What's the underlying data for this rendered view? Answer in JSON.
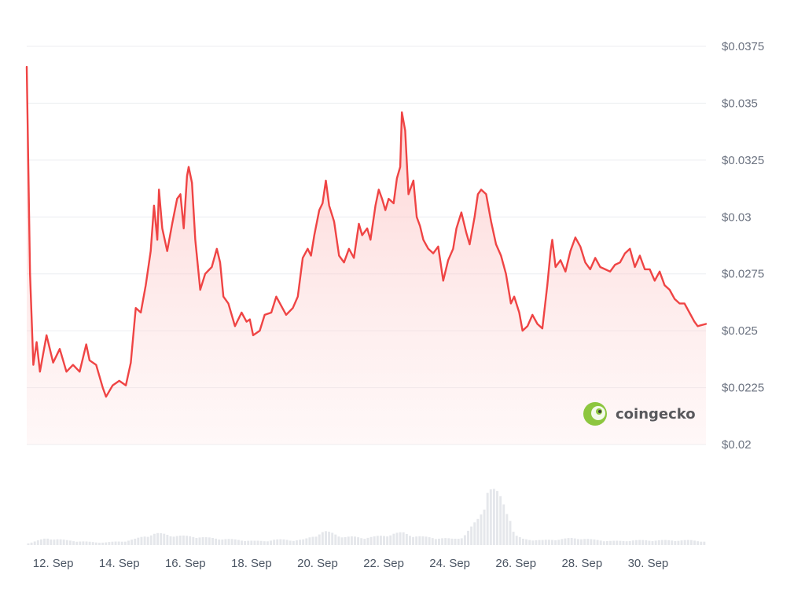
{
  "chart_data": {
    "type": "area",
    "y_ticks": [
      "$0.02",
      "$0.0225",
      "$0.025",
      "$0.0275",
      "$0.03",
      "$0.0325",
      "$0.035",
      "$0.0375"
    ],
    "x_ticks": [
      "12. Sep",
      "14. Sep",
      "16. Sep",
      "18. Sep",
      "20. Sep",
      "22. Sep",
      "24. Sep",
      "26. Sep",
      "28. Sep",
      "30. Sep"
    ],
    "ylim": [
      0.02,
      0.0375
    ],
    "x_range_days": [
      11.2,
      31.75
    ],
    "grid": true,
    "line_color": "#ef4444",
    "fill_color": "#fde2e2",
    "volume_color": "#e5e7eb",
    "series": [
      {
        "points": [
          [
            11.2,
            0.0366
          ],
          [
            11.3,
            0.0275
          ],
          [
            11.4,
            0.0235
          ],
          [
            11.5,
            0.0245
          ],
          [
            11.6,
            0.0232
          ],
          [
            11.8,
            0.0248
          ],
          [
            12.0,
            0.0236
          ],
          [
            12.2,
            0.0242
          ],
          [
            12.4,
            0.0232
          ],
          [
            12.6,
            0.0235
          ],
          [
            12.8,
            0.0232
          ],
          [
            13.0,
            0.0244
          ],
          [
            13.1,
            0.0237
          ],
          [
            13.3,
            0.0235
          ],
          [
            13.5,
            0.0225
          ],
          [
            13.6,
            0.0221
          ],
          [
            13.8,
            0.0226
          ],
          [
            14.0,
            0.0228
          ],
          [
            14.2,
            0.0226
          ],
          [
            14.35,
            0.0236
          ],
          [
            14.5,
            0.026
          ],
          [
            14.65,
            0.0258
          ],
          [
            14.8,
            0.027
          ],
          [
            14.95,
            0.0285
          ],
          [
            15.05,
            0.0305
          ],
          [
            15.15,
            0.029
          ],
          [
            15.2,
            0.0312
          ],
          [
            15.3,
            0.0295
          ],
          [
            15.45,
            0.0285
          ],
          [
            15.6,
            0.0297
          ],
          [
            15.75,
            0.0308
          ],
          [
            15.85,
            0.031
          ],
          [
            15.95,
            0.0295
          ],
          [
            16.05,
            0.0318
          ],
          [
            16.1,
            0.0322
          ],
          [
            16.2,
            0.0315
          ],
          [
            16.3,
            0.029
          ],
          [
            16.45,
            0.0268
          ],
          [
            16.6,
            0.0275
          ],
          [
            16.8,
            0.0278
          ],
          [
            16.95,
            0.0286
          ],
          [
            17.05,
            0.028
          ],
          [
            17.15,
            0.0265
          ],
          [
            17.3,
            0.0262
          ],
          [
            17.5,
            0.0252
          ],
          [
            17.7,
            0.0258
          ],
          [
            17.85,
            0.0254
          ],
          [
            17.95,
            0.0255
          ],
          [
            18.05,
            0.0248
          ],
          [
            18.25,
            0.025
          ],
          [
            18.4,
            0.0257
          ],
          [
            18.6,
            0.0258
          ],
          [
            18.75,
            0.0265
          ],
          [
            18.9,
            0.0261
          ],
          [
            19.05,
            0.0257
          ],
          [
            19.25,
            0.026
          ],
          [
            19.4,
            0.0265
          ],
          [
            19.55,
            0.0282
          ],
          [
            19.7,
            0.0286
          ],
          [
            19.8,
            0.0283
          ],
          [
            19.9,
            0.0292
          ],
          [
            20.05,
            0.0303
          ],
          [
            20.15,
            0.0306
          ],
          [
            20.25,
            0.0316
          ],
          [
            20.35,
            0.0305
          ],
          [
            20.5,
            0.0298
          ],
          [
            20.65,
            0.0283
          ],
          [
            20.8,
            0.028
          ],
          [
            20.95,
            0.0286
          ],
          [
            21.1,
            0.0282
          ],
          [
            21.25,
            0.0297
          ],
          [
            21.35,
            0.0292
          ],
          [
            21.5,
            0.0295
          ],
          [
            21.6,
            0.029
          ],
          [
            21.75,
            0.0305
          ],
          [
            21.85,
            0.0312
          ],
          [
            21.95,
            0.0308
          ],
          [
            22.05,
            0.0303
          ],
          [
            22.15,
            0.0308
          ],
          [
            22.3,
            0.0306
          ],
          [
            22.4,
            0.0317
          ],
          [
            22.5,
            0.0322
          ],
          [
            22.55,
            0.0346
          ],
          [
            22.65,
            0.0338
          ],
          [
            22.75,
            0.031
          ],
          [
            22.9,
            0.0316
          ],
          [
            23.0,
            0.03
          ],
          [
            23.1,
            0.0296
          ],
          [
            23.2,
            0.029
          ],
          [
            23.35,
            0.0286
          ],
          [
            23.5,
            0.0284
          ],
          [
            23.65,
            0.0287
          ],
          [
            23.8,
            0.0272
          ],
          [
            23.95,
            0.0281
          ],
          [
            24.1,
            0.0286
          ],
          [
            24.2,
            0.0295
          ],
          [
            24.35,
            0.0302
          ],
          [
            24.5,
            0.0293
          ],
          [
            24.6,
            0.0288
          ],
          [
            24.75,
            0.03
          ],
          [
            24.85,
            0.031
          ],
          [
            24.95,
            0.0312
          ],
          [
            25.1,
            0.031
          ],
          [
            25.25,
            0.0298
          ],
          [
            25.4,
            0.0288
          ],
          [
            25.55,
            0.0283
          ],
          [
            25.7,
            0.0275
          ],
          [
            25.85,
            0.0262
          ],
          [
            25.95,
            0.0265
          ],
          [
            26.1,
            0.0258
          ],
          [
            26.2,
            0.025
          ],
          [
            26.35,
            0.0252
          ],
          [
            26.5,
            0.0257
          ],
          [
            26.65,
            0.0253
          ],
          [
            26.8,
            0.0251
          ],
          [
            26.95,
            0.027
          ],
          [
            27.05,
            0.0285
          ],
          [
            27.1,
            0.029
          ],
          [
            27.2,
            0.0278
          ],
          [
            27.35,
            0.0281
          ],
          [
            27.5,
            0.0276
          ],
          [
            27.65,
            0.0285
          ],
          [
            27.8,
            0.0291
          ],
          [
            27.95,
            0.0287
          ],
          [
            28.1,
            0.028
          ],
          [
            28.25,
            0.0277
          ],
          [
            28.4,
            0.0282
          ],
          [
            28.55,
            0.0278
          ],
          [
            28.7,
            0.0277
          ],
          [
            28.85,
            0.0276
          ],
          [
            29.0,
            0.0279
          ],
          [
            29.15,
            0.028
          ],
          [
            29.3,
            0.0284
          ],
          [
            29.45,
            0.0286
          ],
          [
            29.6,
            0.0278
          ],
          [
            29.75,
            0.0283
          ],
          [
            29.9,
            0.0277
          ],
          [
            30.05,
            0.0277
          ],
          [
            30.2,
            0.0272
          ],
          [
            30.35,
            0.0276
          ],
          [
            30.5,
            0.027
          ],
          [
            30.65,
            0.0268
          ],
          [
            30.8,
            0.0264
          ],
          [
            30.95,
            0.0262
          ],
          [
            31.1,
            0.0262
          ],
          [
            31.25,
            0.0258
          ],
          [
            31.4,
            0.0254
          ],
          [
            31.5,
            0.0252
          ],
          [
            31.75,
            0.0253
          ]
        ]
      }
    ],
    "volume": [
      [
        11.2,
        0.02
      ],
      [
        11.5,
        0.06
      ],
      [
        11.8,
        0.1
      ],
      [
        12.1,
        0.09
      ],
      [
        12.4,
        0.07
      ],
      [
        12.7,
        0.06
      ],
      [
        13.0,
        0.05
      ],
      [
        13.3,
        0.04
      ],
      [
        13.6,
        0.04
      ],
      [
        13.9,
        0.05
      ],
      [
        14.2,
        0.06
      ],
      [
        14.5,
        0.09
      ],
      [
        14.8,
        0.14
      ],
      [
        15.1,
        0.17
      ],
      [
        15.4,
        0.16
      ],
      [
        15.7,
        0.14
      ],
      [
        16.0,
        0.13
      ],
      [
        16.3,
        0.13
      ],
      [
        16.6,
        0.11
      ],
      [
        16.9,
        0.1
      ],
      [
        17.2,
        0.09
      ],
      [
        17.5,
        0.08
      ],
      [
        17.8,
        0.07
      ],
      [
        18.1,
        0.06
      ],
      [
        18.4,
        0.06
      ],
      [
        18.7,
        0.08
      ],
      [
        19.0,
        0.08
      ],
      [
        19.3,
        0.07
      ],
      [
        19.6,
        0.08
      ],
      [
        19.9,
        0.14
      ],
      [
        20.2,
        0.2
      ],
      [
        20.5,
        0.17
      ],
      [
        20.8,
        0.12
      ],
      [
        21.1,
        0.12
      ],
      [
        21.4,
        0.11
      ],
      [
        21.7,
        0.12
      ],
      [
        22.0,
        0.14
      ],
      [
        22.3,
        0.17
      ],
      [
        22.6,
        0.18
      ],
      [
        22.9,
        0.14
      ],
      [
        23.2,
        0.12
      ],
      [
        23.5,
        0.11
      ],
      [
        23.8,
        0.1
      ],
      [
        24.1,
        0.09
      ],
      [
        24.4,
        0.12
      ],
      [
        24.7,
        0.28
      ],
      [
        24.9,
        0.42
      ],
      [
        25.05,
        0.65
      ],
      [
        25.15,
        0.85
      ],
      [
        25.3,
        0.8
      ],
      [
        25.5,
        0.73
      ],
      [
        25.7,
        0.58
      ],
      [
        25.85,
        0.38
      ],
      [
        25.95,
        0.15
      ],
      [
        26.2,
        0.09
      ],
      [
        26.5,
        0.08
      ],
      [
        26.8,
        0.07
      ],
      [
        27.1,
        0.08
      ],
      [
        27.4,
        0.09
      ],
      [
        27.7,
        0.1
      ],
      [
        28.0,
        0.1
      ],
      [
        28.3,
        0.08
      ],
      [
        28.6,
        0.07
      ],
      [
        28.9,
        0.06
      ],
      [
        29.2,
        0.06
      ],
      [
        29.5,
        0.07
      ],
      [
        29.8,
        0.07
      ],
      [
        30.1,
        0.07
      ],
      [
        30.4,
        0.07
      ],
      [
        30.7,
        0.07
      ],
      [
        31.0,
        0.07
      ],
      [
        31.3,
        0.07
      ],
      [
        31.6,
        0.06
      ],
      [
        31.75,
        0.05
      ]
    ],
    "watermark": "coingecko"
  }
}
